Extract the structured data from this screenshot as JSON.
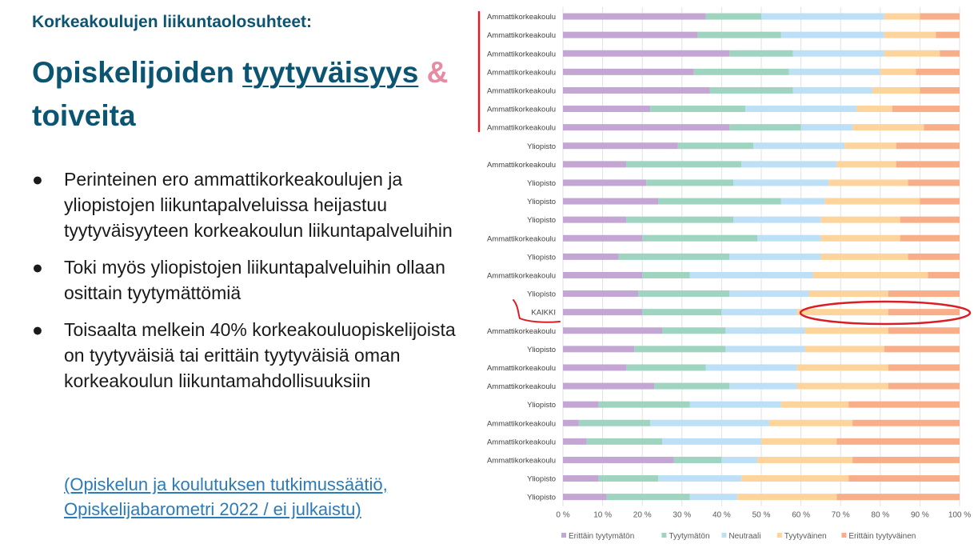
{
  "kicker": "Korkeakoulujen liikuntaolosuhteet:",
  "headline": {
    "part1": "Opiskelijoiden ",
    "underlined": "tyytyväisyys",
    "ampersand": " &",
    "part2": "toiveita"
  },
  "bullets": [
    {
      "marker": "●",
      "text": "Perinteinen ero ammattikorkeakoulujen ja yliopistojen liikuntapalveluissa heijastuu tyytyväisyyteen korkeakoulun liikuntapalveluihin"
    },
    {
      "marker": "●",
      "text": "Toki myös yliopistojen liikuntapalveluihin ollaan osittain tyytymättömiä"
    },
    {
      "marker": "●",
      "text": "Toisaalta melkein 40% korkeakouluopiskelijoista on tyytyväisiä tai erittäin tyytyväisiä oman korkeakoulun liikuntamahdollisuuksiin"
    }
  ],
  "source": "(Opiskelun ja koulutuksen tutkimussäätiö, Opiskelijabarometri 2022 / ei julkaistu)",
  "colors": {
    "title": "#0b5573",
    "ampersand": "#e98aa5",
    "link": "#2b7bb9",
    "annotation": "#d91e26"
  },
  "chart_data": {
    "type": "bar",
    "orientation": "horizontal",
    "stacked": "percent",
    "xlim": [
      0,
      100
    ],
    "xticks": [
      "0 %",
      "10 %",
      "20 %",
      "30 %",
      "40 %",
      "50 %",
      "60 %",
      "70 %",
      "80 %",
      "90 %",
      "100 %"
    ],
    "grid": true,
    "legend_position": "bottom",
    "categories": [
      "Ammattikorkeakoulu",
      "Ammattikorkeakoulu",
      "Ammattikorkeakoulu",
      "Ammattikorkeakoulu",
      "Ammattikorkeakoulu",
      "Ammattikorkeakoulu",
      "Ammattikorkeakoulu",
      "Yliopisto",
      "Ammattikorkeakoulu",
      "Yliopisto",
      "Yliopisto",
      "Yliopisto",
      "Ammattikorkeakoulu",
      "Yliopisto",
      "Ammattikorkeakoulu",
      "Yliopisto",
      "KAIKKI",
      "Ammattikorkeakoulu",
      "Yliopisto",
      "Ammattikorkeakoulu",
      "Ammattikorkeakoulu",
      "Yliopisto",
      "Ammattikorkeakoulu",
      "Ammattikorkeakoulu",
      "Ammattikorkeakoulu",
      "Yliopisto",
      "Yliopisto"
    ],
    "series": [
      {
        "name": "Erittäin tyytymätön",
        "color": "#c3a6d3",
        "values": [
          36,
          34,
          42,
          33,
          37,
          22,
          42,
          29,
          16,
          21,
          24,
          16,
          20,
          14,
          20,
          19,
          20,
          25,
          18,
          16,
          23,
          9,
          4,
          6,
          28,
          9,
          11
        ]
      },
      {
        "name": "Tyytymätön",
        "color": "#9ed4c0",
        "values": [
          14,
          21,
          16,
          24,
          21,
          24,
          18,
          19,
          29,
          22,
          31,
          27,
          29,
          28,
          12,
          23,
          20,
          16,
          23,
          20,
          19,
          23,
          18,
          19,
          12,
          15,
          21
        ]
      },
      {
        "name": "Neutraali",
        "color": "#bde0f6",
        "values": [
          31,
          26,
          23,
          23,
          20,
          28,
          13,
          23,
          24,
          24,
          11,
          22,
          16,
          23,
          31,
          20,
          19,
          20,
          20,
          23,
          17,
          23,
          30,
          25,
          9,
          21,
          12
        ]
      },
      {
        "name": "Tyytyväinen",
        "color": "#fdd49c",
        "values": [
          9,
          13,
          14,
          9,
          12,
          9,
          18,
          13,
          15,
          20,
          24,
          20,
          20,
          22,
          29,
          20,
          23,
          21,
          20,
          23,
          23,
          17,
          21,
          19,
          24,
          27,
          25
        ]
      },
      {
        "name": "Erittäin tyytyväinen",
        "color": "#f9ae8a",
        "values": [
          10,
          6,
          5,
          11,
          10,
          17,
          9,
          16,
          16,
          13,
          10,
          15,
          15,
          13,
          8,
          18,
          18,
          18,
          19,
          18,
          18,
          28,
          27,
          31,
          27,
          28,
          31
        ]
      }
    ]
  }
}
